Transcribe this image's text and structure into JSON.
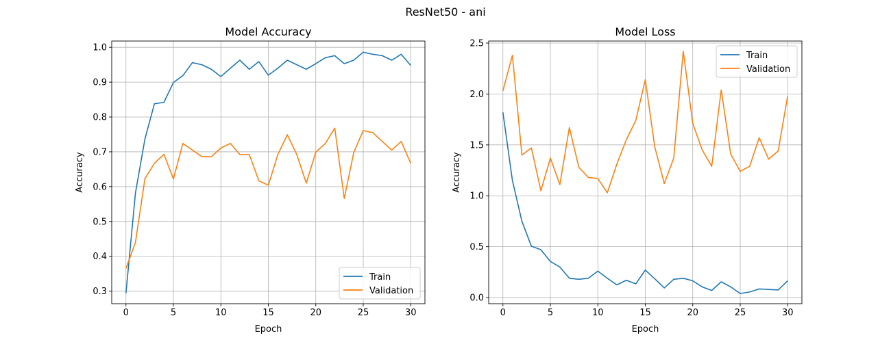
{
  "figure": {
    "suptitle": "ResNet50 - ani"
  },
  "colors": {
    "train": "#1f77b4",
    "validation": "#ff7f0e",
    "grid": "#b0b0b0",
    "axes": "#000000"
  },
  "chart_data": [
    {
      "type": "line",
      "title": "Model Accuracy",
      "xlabel": "Epoch",
      "ylabel": "Accuracy",
      "xlim": [
        -1.5,
        31.5
      ],
      "ylim": [
        0.264,
        1.018
      ],
      "xticks": [
        0,
        5,
        10,
        15,
        20,
        25,
        30
      ],
      "xtick_labels": [
        "0",
        "5",
        "10",
        "15",
        "20",
        "25",
        "30"
      ],
      "yticks": [
        0.3,
        0.4,
        0.5,
        0.6,
        0.7,
        0.8,
        0.9,
        1.0
      ],
      "ytick_labels": [
        "0.3",
        "0.4",
        "0.5",
        "0.6",
        "0.7",
        "0.8",
        "0.9",
        "1.0"
      ],
      "grid": true,
      "legend_position": "lower-right",
      "x": [
        0,
        1,
        2,
        3,
        4,
        5,
        6,
        7,
        8,
        9,
        10,
        11,
        12,
        13,
        14,
        15,
        16,
        17,
        18,
        19,
        20,
        21,
        22,
        23,
        24,
        25,
        26,
        27,
        28,
        29,
        30
      ],
      "series": [
        {
          "name": "Train",
          "color": "#1f77b4",
          "values": [
            0.294,
            0.582,
            0.737,
            0.838,
            0.842,
            0.899,
            0.919,
            0.956,
            0.95,
            0.937,
            0.916,
            0.94,
            0.963,
            0.937,
            0.959,
            0.92,
            0.94,
            0.963,
            0.95,
            0.937,
            0.953,
            0.97,
            0.976,
            0.953,
            0.963,
            0.986,
            0.98,
            0.976,
            0.963,
            0.98,
            0.948
          ]
        },
        {
          "name": "Validation",
          "color": "#ff7f0e",
          "values": [
            0.365,
            0.44,
            0.623,
            0.667,
            0.693,
            0.622,
            0.724,
            0.705,
            0.686,
            0.686,
            0.711,
            0.724,
            0.692,
            0.692,
            0.617,
            0.604,
            0.692,
            0.749,
            0.692,
            0.61,
            0.699,
            0.724,
            0.768,
            0.566,
            0.698,
            0.761,
            0.755,
            0.73,
            0.705,
            0.73,
            0.667
          ]
        }
      ]
    },
    {
      "type": "line",
      "title": "Model Loss",
      "xlabel": "Epoch",
      "ylabel": "Accuracy",
      "xlim": [
        -1.5,
        31.5
      ],
      "ylim": [
        -0.06,
        2.52
      ],
      "xticks": [
        0,
        5,
        10,
        15,
        20,
        25,
        30
      ],
      "xtick_labels": [
        "0",
        "5",
        "10",
        "15",
        "20",
        "25",
        "30"
      ],
      "yticks": [
        0.0,
        0.5,
        1.0,
        1.5,
        2.0,
        2.5
      ],
      "ytick_labels": [
        "0.0",
        "0.5",
        "1.0",
        "1.5",
        "2.0",
        "2.5"
      ],
      "grid": true,
      "legend_position": "upper-right",
      "x": [
        0,
        1,
        2,
        3,
        4,
        5,
        6,
        7,
        8,
        9,
        10,
        11,
        12,
        13,
        14,
        15,
        16,
        17,
        18,
        19,
        20,
        21,
        22,
        23,
        24,
        25,
        26,
        27,
        28,
        29,
        30
      ],
      "series": [
        {
          "name": "Train",
          "color": "#1f77b4",
          "values": [
            1.82,
            1.15,
            0.75,
            0.505,
            0.47,
            0.355,
            0.3,
            0.19,
            0.18,
            0.19,
            0.26,
            0.19,
            0.125,
            0.17,
            0.135,
            0.27,
            0.185,
            0.095,
            0.18,
            0.19,
            0.165,
            0.105,
            0.07,
            0.155,
            0.105,
            0.04,
            0.055,
            0.085,
            0.08,
            0.075,
            0.165
          ]
        },
        {
          "name": "Validation",
          "color": "#ff7f0e",
          "values": [
            2.03,
            2.38,
            1.4,
            1.47,
            1.05,
            1.37,
            1.11,
            1.67,
            1.28,
            1.18,
            1.17,
            1.03,
            1.31,
            1.55,
            1.74,
            2.14,
            1.48,
            1.12,
            1.37,
            2.42,
            1.71,
            1.45,
            1.29,
            2.04,
            1.41,
            1.24,
            1.29,
            1.57,
            1.36,
            1.44,
            1.98
          ]
        }
      ]
    }
  ]
}
